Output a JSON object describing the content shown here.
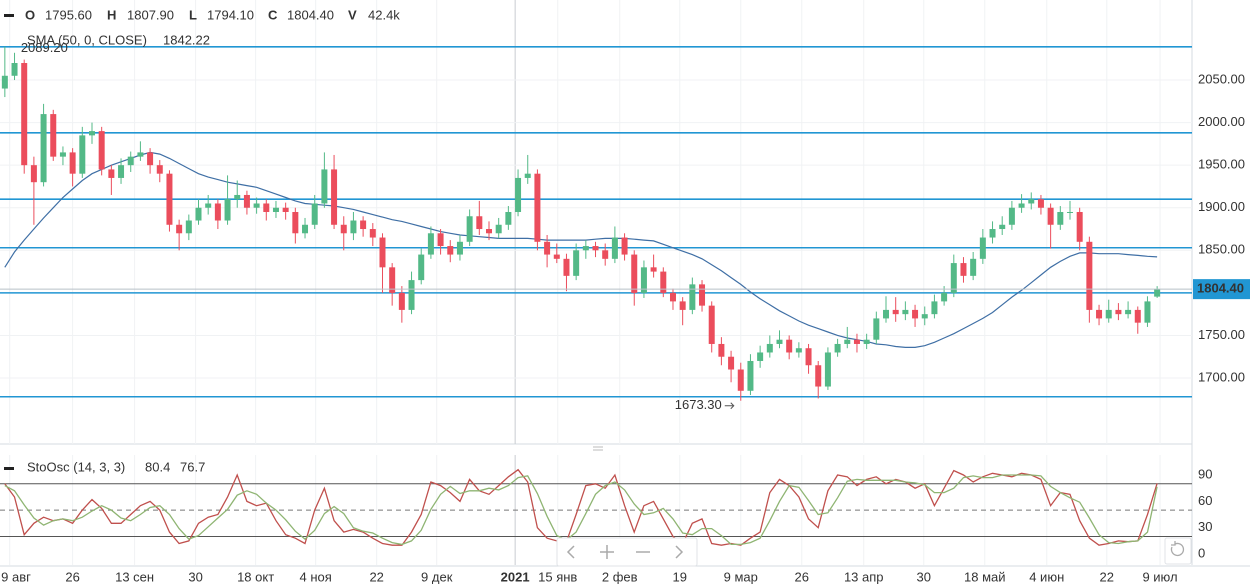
{
  "chart_data": [
    {
      "type": "candlestick",
      "legend": {
        "labels": [
          "O",
          "H",
          "L",
          "C",
          "V"
        ],
        "values": [
          "1795.60",
          "1807.90",
          "1794.10",
          "1804.40",
          "42.4k"
        ]
      },
      "high_label": "2089.20",
      "annotation": "1673.30",
      "last_price_label": "1804.40",
      "up_color": "#53b987",
      "down_color": "#eb4d5c",
      "level_color": "#2196d3",
      "candles": [
        [
          2040,
          2089.2,
          2030,
          2055
        ],
        [
          2055,
          2082,
          2050,
          2070
        ],
        [
          2070,
          2074,
          1940,
          1950
        ],
        [
          1950,
          1960,
          1880,
          1930
        ],
        [
          1930,
          2022,
          1925,
          2010
        ],
        [
          2010,
          2015,
          1955,
          1960
        ],
        [
          1960,
          1972,
          1950,
          1965
        ],
        [
          1965,
          1970,
          1925,
          1940
        ],
        [
          1940,
          1995,
          1935,
          1985
        ],
        [
          1985,
          2000,
          1975,
          1990
        ],
        [
          1990,
          1995,
          1938,
          1945
        ],
        [
          1945,
          1950,
          1915,
          1935
        ],
        [
          1935,
          1958,
          1928,
          1950
        ],
        [
          1950,
          1966,
          1942,
          1960
        ],
        [
          1960,
          1978,
          1955,
          1965
        ],
        [
          1965,
          1970,
          1940,
          1950
        ],
        [
          1950,
          1956,
          1930,
          1940
        ],
        [
          1940,
          1944,
          1872,
          1880
        ],
        [
          1880,
          1886,
          1850,
          1870
        ],
        [
          1870,
          1892,
          1862,
          1885
        ],
        [
          1885,
          1910,
          1880,
          1900
        ],
        [
          1900,
          1915,
          1892,
          1905
        ],
        [
          1905,
          1910,
          1875,
          1885
        ],
        [
          1885,
          1938,
          1880,
          1910
        ],
        [
          1910,
          1932,
          1900,
          1915
        ],
        [
          1915,
          1920,
          1892,
          1900
        ],
        [
          1900,
          1912,
          1893,
          1905
        ],
        [
          1905,
          1910,
          1885,
          1895
        ],
        [
          1895,
          1908,
          1888,
          1900
        ],
        [
          1900,
          1906,
          1886,
          1895
        ],
        [
          1895,
          1900,
          1858,
          1870
        ],
        [
          1870,
          1888,
          1864,
          1880
        ],
        [
          1880,
          1915,
          1875,
          1905
        ],
        [
          1905,
          1965,
          1900,
          1945
        ],
        [
          1945,
          1962,
          1875,
          1880
        ],
        [
          1880,
          1890,
          1850,
          1870
        ],
        [
          1870,
          1895,
          1862,
          1885
        ],
        [
          1885,
          1890,
          1866,
          1875
        ],
        [
          1875,
          1882,
          1855,
          1865
        ],
        [
          1865,
          1870,
          1800,
          1830
        ],
        [
          1830,
          1835,
          1785,
          1800
        ],
        [
          1800,
          1808,
          1765,
          1780
        ],
        [
          1780,
          1825,
          1775,
          1815
        ],
        [
          1815,
          1852,
          1810,
          1845
        ],
        [
          1845,
          1878,
          1840,
          1870
        ],
        [
          1870,
          1875,
          1845,
          1855
        ],
        [
          1855,
          1862,
          1836,
          1845
        ],
        [
          1845,
          1868,
          1838,
          1860
        ],
        [
          1860,
          1898,
          1855,
          1890
        ],
        [
          1890,
          1908,
          1868,
          1875
        ],
        [
          1875,
          1884,
          1862,
          1870
        ],
        [
          1870,
          1888,
          1864,
          1880
        ],
        [
          1880,
          1902,
          1874,
          1895
        ],
        [
          1895,
          1945,
          1890,
          1935
        ],
        [
          1935,
          1962,
          1928,
          1940
        ],
        [
          1940,
          1945,
          1850,
          1860
        ],
        [
          1860,
          1868,
          1830,
          1845
        ],
        [
          1845,
          1858,
          1835,
          1840
        ],
        [
          1840,
          1846,
          1802,
          1820
        ],
        [
          1820,
          1858,
          1815,
          1850
        ],
        [
          1850,
          1862,
          1840,
          1855
        ],
        [
          1855,
          1860,
          1842,
          1850
        ],
        [
          1850,
          1858,
          1832,
          1840
        ],
        [
          1840,
          1878,
          1835,
          1865
        ],
        [
          1865,
          1870,
          1838,
          1845
        ],
        [
          1845,
          1850,
          1785,
          1800
        ],
        [
          1800,
          1838,
          1794,
          1830
        ],
        [
          1830,
          1845,
          1818,
          1825
        ],
        [
          1825,
          1830,
          1795,
          1800
        ],
        [
          1800,
          1805,
          1780,
          1790
        ],
        [
          1790,
          1795,
          1762,
          1780
        ],
        [
          1780,
          1818,
          1775,
          1810
        ],
        [
          1810,
          1815,
          1778,
          1785
        ],
        [
          1785,
          1790,
          1730,
          1740
        ],
        [
          1740,
          1748,
          1715,
          1725
        ],
        [
          1725,
          1732,
          1695,
          1710
        ],
        [
          1710,
          1718,
          1673.3,
          1685
        ],
        [
          1685,
          1728,
          1680,
          1720
        ],
        [
          1720,
          1738,
          1712,
          1730
        ],
        [
          1730,
          1750,
          1724,
          1740
        ],
        [
          1740,
          1756,
          1735,
          1745
        ],
        [
          1745,
          1750,
          1722,
          1730
        ],
        [
          1730,
          1742,
          1724,
          1735
        ],
        [
          1735,
          1740,
          1705,
          1715
        ],
        [
          1715,
          1720,
          1676,
          1690
        ],
        [
          1690,
          1736,
          1686,
          1730
        ],
        [
          1730,
          1746,
          1725,
          1740
        ],
        [
          1740,
          1760,
          1735,
          1745
        ],
        [
          1745,
          1752,
          1730,
          1740
        ],
        [
          1740,
          1752,
          1734,
          1745
        ],
        [
          1745,
          1778,
          1740,
          1770
        ],
        [
          1770,
          1796,
          1765,
          1780
        ],
        [
          1780,
          1795,
          1766,
          1775
        ],
        [
          1775,
          1790,
          1768,
          1780
        ],
        [
          1780,
          1786,
          1760,
          1770
        ],
        [
          1770,
          1784,
          1762,
          1775
        ],
        [
          1775,
          1798,
          1770,
          1790
        ],
        [
          1790,
          1808,
          1785,
          1800
        ],
        [
          1800,
          1845,
          1795,
          1835
        ],
        [
          1835,
          1842,
          1812,
          1820
        ],
        [
          1820,
          1848,
          1815,
          1840
        ],
        [
          1840,
          1875,
          1834,
          1865
        ],
        [
          1865,
          1884,
          1858,
          1875
        ],
        [
          1875,
          1890,
          1868,
          1880
        ],
        [
          1880,
          1908,
          1874,
          1900
        ],
        [
          1900,
          1916,
          1894,
          1905
        ],
        [
          1905,
          1918,
          1898,
          1910
        ],
        [
          1910,
          1915,
          1892,
          1900
        ],
        [
          1900,
          1905,
          1852,
          1880
        ],
        [
          1880,
          1902,
          1874,
          1895
        ],
        [
          1895,
          1908,
          1886,
          1895
        ],
        [
          1895,
          1900,
          1850,
          1860
        ],
        [
          1860,
          1866,
          1765,
          1780
        ],
        [
          1780,
          1786,
          1762,
          1770
        ],
        [
          1770,
          1792,
          1765,
          1780
        ],
        [
          1780,
          1788,
          1768,
          1775
        ],
        [
          1775,
          1790,
          1770,
          1780
        ],
        [
          1780,
          1784,
          1752,
          1765
        ],
        [
          1765,
          1796,
          1760,
          1790
        ],
        [
          1795.6,
          1807.9,
          1794.1,
          1804.4
        ]
      ],
      "series": [
        {
          "name": "SMA (50, 0, CLOSE)",
          "color": "#3f6fa5",
          "values": [
            1830,
            1848,
            1862,
            1875,
            1888,
            1900,
            1912,
            1922,
            1932,
            1940,
            1945,
            1950,
            1954,
            1958,
            1962,
            1965,
            1963,
            1958,
            1952,
            1946,
            1940,
            1936,
            1933,
            1930,
            1928,
            1926,
            1924,
            1920,
            1916,
            1912,
            1908,
            1905,
            1904,
            1903,
            1902,
            1900,
            1898,
            1895,
            1892,
            1889,
            1886,
            1884,
            1881,
            1878,
            1875,
            1872,
            1870,
            1868,
            1867,
            1866,
            1865,
            1864,
            1864,
            1864,
            1864,
            1863,
            1862,
            1862,
            1862,
            1862,
            1862,
            1863,
            1864,
            1864,
            1864,
            1863,
            1862,
            1861,
            1857,
            1853,
            1849,
            1845,
            1840,
            1833,
            1826,
            1818,
            1810,
            1801,
            1793,
            1786,
            1779,
            1773,
            1767,
            1762,
            1758,
            1754,
            1750,
            1747,
            1745,
            1743,
            1740,
            1739,
            1737,
            1736,
            1736,
            1738,
            1742,
            1747,
            1752,
            1758,
            1764,
            1770,
            1777,
            1786,
            1795,
            1803,
            1812,
            1821,
            1830,
            1837,
            1843,
            1847,
            1847,
            1846,
            1846,
            1846,
            1845,
            1844,
            1843,
            1842.22
          ]
        }
      ],
      "levels": [
        2089,
        1988,
        1910,
        1853,
        1800,
        1678
      ],
      "ylim": [
        1622.5,
        2144
      ],
      "yticks": [
        {
          "value": 1700,
          "label": "1700.00"
        },
        {
          "value": 1750,
          "label": "1750.00"
        },
        {
          "value": 1800,
          "label": "1800.00"
        },
        {
          "value": 1850,
          "label": "1850.00"
        },
        {
          "value": 1900,
          "label": "1900.00"
        },
        {
          "value": 1950,
          "label": "1950.00"
        },
        {
          "value": 2000,
          "label": "2000.00"
        },
        {
          "value": 2050,
          "label": "2050.00"
        }
      ],
      "xlim": [
        -0.5,
        122.6
      ],
      "xticks": [
        {
          "value": 0.5,
          "label": "9 авг"
        },
        {
          "value": 7,
          "label": "26"
        },
        {
          "value": 13.4,
          "label": "13 сен"
        },
        {
          "value": 19.7,
          "label": "30"
        },
        {
          "value": 25.9,
          "label": "18 окт"
        },
        {
          "value": 32.1,
          "label": "4 ноя"
        },
        {
          "value": 38.4,
          "label": "22"
        },
        {
          "value": 44.6,
          "label": "9 дек"
        },
        {
          "value": 52.7,
          "label": "2021"
        },
        {
          "value": 57.1,
          "label": "15 янв"
        },
        {
          "value": 63.5,
          "label": "2 фев"
        },
        {
          "value": 69.7,
          "label": "19"
        },
        {
          "value": 76,
          "label": "9 мар"
        },
        {
          "value": 82.3,
          "label": "26"
        },
        {
          "value": 88.7,
          "label": "13 апр"
        },
        {
          "value": 94.9,
          "label": "30"
        },
        {
          "value": 101.2,
          "label": "18 май"
        },
        {
          "value": 107.6,
          "label": "4 июн"
        },
        {
          "value": 113.8,
          "label": "22"
        },
        {
          "value": 119.3,
          "label": "9 июл"
        }
      ],
      "bold_xticks": [
        8
      ],
      "grid": true
    },
    {
      "type": "line",
      "title": "StoOsc (14, 3, 3)",
      "series": [
        {
          "color": "#c0504d",
          "values": [
            80,
            65,
            22,
            35,
            42,
            38,
            40,
            35,
            50,
            62,
            52,
            35,
            35,
            45,
            55,
            60,
            50,
            25,
            12,
            15,
            35,
            42,
            45,
            65,
            90,
            60,
            55,
            58,
            38,
            22,
            18,
            12,
            50,
            75,
            38,
            25,
            28,
            25,
            18,
            12,
            10,
            10,
            25,
            45,
            82,
            78,
            70,
            60,
            85,
            72,
            68,
            78,
            88,
            96,
            82,
            30,
            18,
            15,
            14,
            45,
            78,
            80,
            75,
            90,
            55,
            25,
            55,
            60,
            40,
            20,
            12,
            35,
            40,
            12,
            10,
            12,
            10,
            18,
            25,
            70,
            85,
            78,
            65,
            40,
            30,
            72,
            90,
            88,
            78,
            85,
            88,
            80,
            85,
            82,
            75,
            80,
            55,
            75,
            95,
            90,
            82,
            88,
            92,
            90,
            88,
            92,
            90,
            85,
            55,
            70,
            68,
            38,
            18,
            10,
            12,
            15,
            14,
            15,
            45,
            80.4
          ]
        },
        {
          "color": "#8fb573",
          "values": [
            78,
            72,
            56,
            41,
            33,
            38,
            40,
            38,
            42,
            49,
            55,
            50,
            41,
            38,
            45,
            53,
            55,
            45,
            29,
            17,
            21,
            31,
            41,
            51,
            67,
            72,
            68,
            58,
            50,
            39,
            26,
            17,
            27,
            46,
            54,
            46,
            30,
            26,
            24,
            18,
            13,
            11,
            15,
            27,
            51,
            68,
            77,
            69,
            72,
            72,
            75,
            73,
            78,
            87,
            89,
            69,
            43,
            21,
            16,
            25,
            46,
            68,
            78,
            82,
            73,
            57,
            45,
            47,
            52,
            40,
            24,
            22,
            29,
            29,
            21,
            11,
            11,
            13,
            18,
            38,
            60,
            78,
            76,
            61,
            45,
            47,
            64,
            83,
            85,
            84,
            84,
            84,
            84,
            82,
            81,
            79,
            70,
            70,
            75,
            87,
            89,
            87,
            87,
            90,
            90,
            90,
            90,
            89,
            77,
            70,
            64,
            59,
            41,
            22,
            13,
            12,
            14,
            15,
            25,
            76.7
          ]
        }
      ],
      "bands": [
        80,
        50,
        20
      ],
      "ylim": [
        -12.5,
        112.8
      ],
      "yticks": [
        0,
        30,
        60,
        90
      ]
    }
  ]
}
